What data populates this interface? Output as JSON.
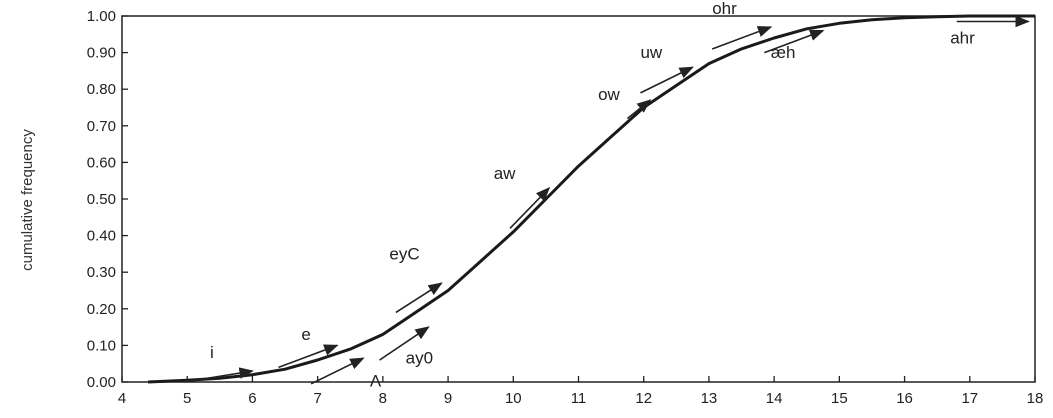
{
  "chart_data": {
    "type": "line",
    "title": "",
    "xlabel": "",
    "ylabel": "cumulative frequency",
    "xlim": [
      4,
      18
    ],
    "ylim": [
      0,
      1
    ],
    "x_ticks": [
      4,
      5,
      6,
      7,
      8,
      9,
      10,
      11,
      12,
      13,
      14,
      15,
      16,
      17,
      18
    ],
    "y_ticks": [
      "0.00",
      "0.10",
      "0.20",
      "0.30",
      "0.40",
      "0.50",
      "0.60",
      "0.70",
      "0.80",
      "0.90",
      "1.00"
    ],
    "grid": false,
    "legend": "none",
    "series": [
      {
        "x": [
          4.4,
          5,
          5.5,
          6,
          6.5,
          7,
          7.5,
          8,
          8.5,
          9,
          9.5,
          10,
          10.5,
          11,
          11.5,
          12,
          12.5,
          13,
          13.5,
          14,
          14.5,
          15,
          15.5,
          16,
          16.5,
          17,
          17.5,
          18
        ],
        "values": [
          0.0,
          0.005,
          0.01,
          0.02,
          0.035,
          0.06,
          0.09,
          0.13,
          0.19,
          0.25,
          0.33,
          0.41,
          0.5,
          0.59,
          0.67,
          0.75,
          0.81,
          0.87,
          0.91,
          0.94,
          0.965,
          0.98,
          0.99,
          0.995,
          0.998,
          1.0,
          1.0,
          1.0
        ]
      }
    ],
    "annotations": [
      {
        "text": "i",
        "x": 5.35,
        "y": 0.065,
        "arrow_x": [
          4.95,
          6.0
        ],
        "arrow_y": [
          0.0,
          0.03
        ]
      },
      {
        "text": "e",
        "x": 6.75,
        "y": 0.115,
        "arrow_x": [
          6.4,
          7.3
        ],
        "arrow_y": [
          0.04,
          0.1
        ]
      },
      {
        "text": "Λ",
        "x": 7.8,
        "y": -0.012,
        "arrow_x": [
          6.9,
          7.7
        ],
        "arrow_y": [
          -0.005,
          0.065
        ]
      },
      {
        "text": "ay0",
        "x": 8.35,
        "y": 0.05,
        "arrow_x": [
          7.95,
          8.7
        ],
        "arrow_y": [
          0.06,
          0.15
        ]
      },
      {
        "text": "eyC",
        "x": 8.1,
        "y": 0.335,
        "arrow_x": [
          8.2,
          8.9
        ],
        "arrow_y": [
          0.19,
          0.27
        ]
      },
      {
        "text": "aw",
        "x": 9.7,
        "y": 0.555,
        "arrow_x": [
          9.95,
          10.55
        ],
        "arrow_y": [
          0.42,
          0.53
        ]
      },
      {
        "text": "ow",
        "x": 11.3,
        "y": 0.77,
        "arrow_x": [
          11.75,
          12.1
        ],
        "arrow_y": [
          0.72,
          0.77
        ]
      },
      {
        "text": "uw",
        "x": 11.95,
        "y": 0.885,
        "arrow_x": [
          11.95,
          12.75
        ],
        "arrow_y": [
          0.79,
          0.86
        ]
      },
      {
        "text": "ohr",
        "x": 13.05,
        "y": 1.005,
        "arrow_x": [
          13.05,
          13.95
        ],
        "arrow_y": [
          0.91,
          0.97
        ]
      },
      {
        "text": "æh",
        "x": 13.95,
        "y": 0.885,
        "arrow_x": [
          13.85,
          14.75
        ],
        "arrow_y": [
          0.9,
          0.96
        ]
      },
      {
        "text": "ahr",
        "x": 16.7,
        "y": 0.925,
        "arrow_x": [
          16.8,
          17.9
        ],
        "arrow_y": [
          0.985,
          0.985
        ]
      }
    ]
  }
}
